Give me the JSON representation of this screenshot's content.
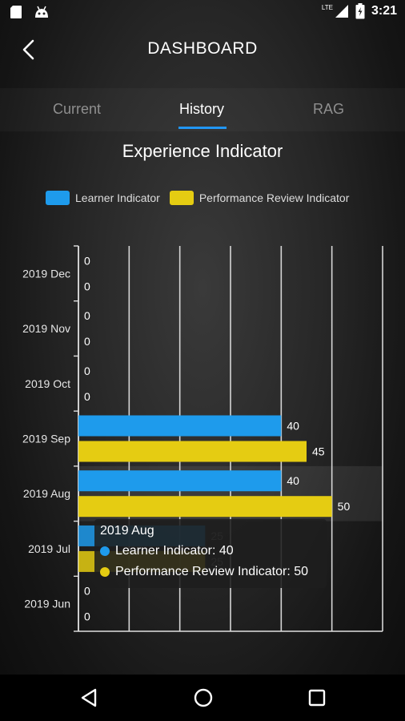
{
  "status_bar": {
    "time": "3:21",
    "network": "LTE"
  },
  "header": {
    "title": "DASHBOARD"
  },
  "tabs": [
    {
      "label": "Current",
      "active": false
    },
    {
      "label": "History",
      "active": true
    },
    {
      "label": "RAG",
      "active": false
    }
  ],
  "colors": {
    "learner": "#1e9bec",
    "performance": "#e5cc12",
    "accent": "#2196f3"
  },
  "icons": {
    "back": "chevron-left-icon",
    "nav_back": "triangle-back-icon",
    "nav_home": "circle-home-icon",
    "nav_recents": "square-recents-icon"
  },
  "chart_data": {
    "type": "bar",
    "orientation": "horizontal",
    "title": "Experience Indicator",
    "categories": [
      "2019 Dec",
      "2019 Nov",
      "2019 Oct",
      "2019 Sep",
      "2019 Aug",
      "2019 Jul",
      "2019 Jun"
    ],
    "series": [
      {
        "name": "Learner Indicator",
        "values": [
          0,
          0,
          0,
          40,
          40,
          25,
          0
        ]
      },
      {
        "name": "Performance Review Indicator",
        "values": [
          0,
          0,
          0,
          45,
          50,
          25,
          0
        ]
      }
    ],
    "xlim": [
      0,
      60
    ],
    "grid": true,
    "legend": "top",
    "highlighted_category": "2019 Aug"
  },
  "tooltip": {
    "title": "2019 Aug",
    "rows": [
      {
        "label": "Learner Indicator: 40"
      },
      {
        "label": "Performance Review Indicator: 50"
      }
    ]
  }
}
